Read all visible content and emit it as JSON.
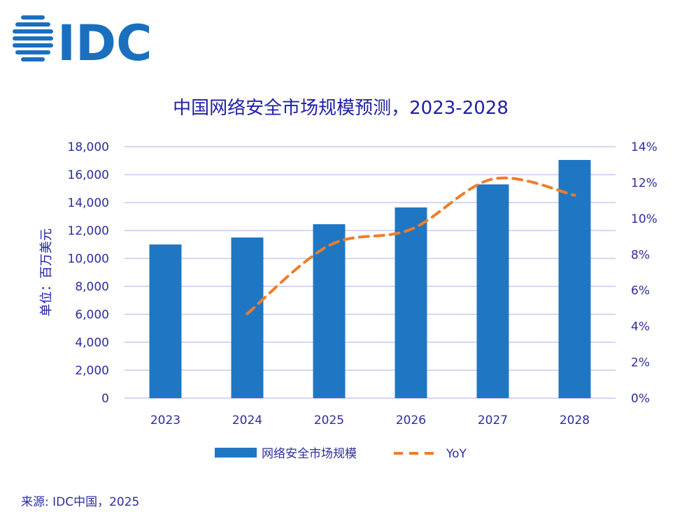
{
  "logo": {
    "text": "IDC",
    "color": "#1a6fbf"
  },
  "source": "来源: IDC中国，2025",
  "chart_data": {
    "type": "bar",
    "title": "中国网络安全市场规模预测，2023-2028",
    "ylabel": "单位：百万美元",
    "categories": [
      "2023",
      "2024",
      "2025",
      "2026",
      "2027",
      "2028"
    ],
    "series": [
      {
        "name": "网络安全市场规模",
        "type": "bar",
        "axis": "left",
        "color": "#1f77c4",
        "values": [
          11000,
          11500,
          12450,
          13650,
          15300,
          17050
        ]
      },
      {
        "name": "YoY",
        "type": "line",
        "style": "dashed",
        "axis": "right",
        "color": "#f07d2a",
        "values": [
          null,
          4.7,
          8.5,
          9.4,
          12.2,
          11.3
        ]
      }
    ],
    "ylim": [
      0,
      18000
    ],
    "y_ticks": [
      "0",
      "2,000",
      "4,000",
      "6,000",
      "8,000",
      "10,000",
      "12,000",
      "14,000",
      "16,000",
      "18,000"
    ],
    "y2lim": [
      0,
      14
    ],
    "y2_ticks": [
      "0%",
      "2%",
      "4%",
      "6%",
      "8%",
      "10%",
      "12%",
      "14%"
    ],
    "grid": true,
    "grid_color": "#c8c8f0",
    "legend": "bottom"
  }
}
